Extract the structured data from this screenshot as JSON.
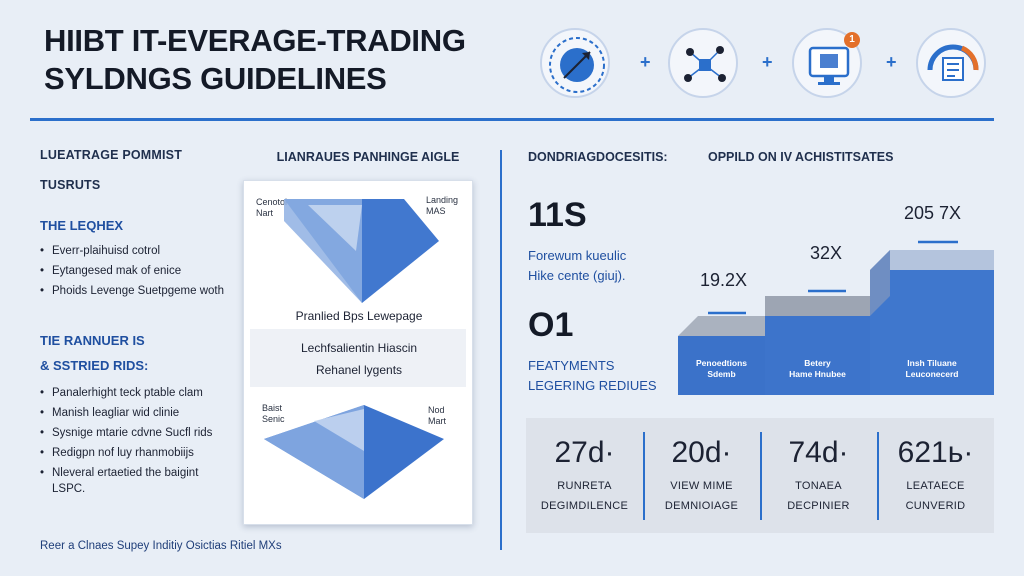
{
  "title": {
    "line1": "HIIBT IT-EVERAGE-TRADING",
    "line2": "SYLDNGS GUIDELINES"
  },
  "header_icons": [
    {
      "name": "globe-arrow-icon"
    },
    {
      "name": "network-nodes-icon"
    },
    {
      "name": "monitor-chart-icon",
      "badge": "1"
    },
    {
      "name": "gauge-dial-icon"
    }
  ],
  "header_plus": "+",
  "left": {
    "h1": "LUEATRAGE POMMIST",
    "h2": "TUSRUTS",
    "h3": "THE LEQHEX",
    "list1": [
      "Everr-plaihuisd cotrol",
      "Eytangesed mak of enice",
      "Phoids Levenge Suetpgeme woth"
    ],
    "h4": "TIE RANNUER IS",
    "h5": "& SSTRIED RIDS:",
    "list2": [
      "Panalerhight teck ptable clam",
      "Manish leagliar wid clinie",
      "Sysnige mtarie cdvne Sucfl rids",
      "Redigpn nof luy rhanmobiijs",
      "Nleveral ertaetied the baigint"
    ],
    "tail": "LSPC.",
    "note": "Reer a Clnaes Supey Inditiy Osictias Ritiel MXs"
  },
  "middle": {
    "title": "LIANRAUES PANHINGE AIGLE",
    "top_left_lbl": [
      "Cenotol",
      "Nart"
    ],
    "top_right_lbl": [
      "Landing",
      "MAS"
    ],
    "line1": "Pranlied Bps Lewepage",
    "line2": "Lechfsalientin Hiascin",
    "line3": "Rehanel lygents",
    "bot_left_lbl": [
      "Baist",
      "Senic"
    ],
    "bot_right_lbl": [
      "Nod",
      "Mart"
    ]
  },
  "right": {
    "hdr1": "DONDRIAGDOCESITIS:",
    "hdr2": "OPPILD ON IV ACHISTITSATES",
    "big1": "11S",
    "sub1": [
      "Forewum kueulic",
      "Hike cente (giuj)."
    ],
    "big2": "O1",
    "sub2": [
      "FEATYMENTS",
      "LEGERING REDIUES"
    ],
    "steps": [
      {
        "value": "19.2X",
        "label": [
          "Penoedtions",
          "Sdemb"
        ]
      },
      {
        "value": "32X",
        "label": [
          "Betery",
          "Hame Hnubee"
        ]
      },
      {
        "value": "205 7X",
        "label": [
          "Insh Tiluane",
          "Leuconecerd"
        ]
      }
    ],
    "stats": [
      {
        "value": "27d·",
        "t1": "RUNRETA",
        "t2": "DEGIMDILENCE"
      },
      {
        "value": "20d·",
        "t1": "VIEW MIME",
        "t2": "DEMNIOIAGE"
      },
      {
        "value": "74d·",
        "t1": "TONAEA",
        "t2": "DECPINIER"
      },
      {
        "value": "621ь·",
        "t1": "LEATAECE",
        "t2": "CUNVERID"
      }
    ]
  },
  "colors": {
    "accent": "#2b6fcb",
    "step_front": "#3b72c9",
    "step_top": "#aab2bf",
    "background": "#e8eef6"
  }
}
